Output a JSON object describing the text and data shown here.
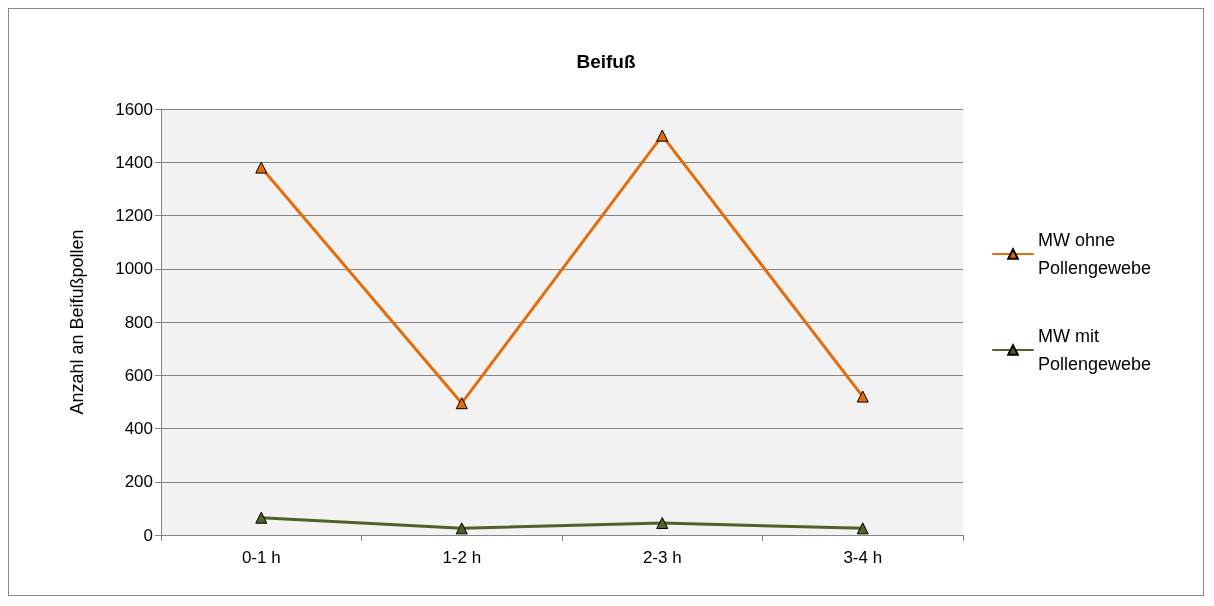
{
  "chart_data": {
    "type": "line",
    "title": "Beifuß",
    "ylabel": "Anzahl an Beifußpollen",
    "categories": [
      "0-1 h",
      "1-2 h",
      "2-3 h",
      "3-4 h"
    ],
    "series": [
      {
        "name": "MW ohne Pollengewebe",
        "color": "#e46c0a",
        "values": [
          1380,
          495,
          1500,
          520
        ]
      },
      {
        "name": "MW mit Pollengewebe",
        "color": "#4f6228",
        "values": [
          65,
          25,
          45,
          25
        ]
      }
    ],
    "ylim": [
      0,
      1600
    ],
    "yticks": [
      0,
      200,
      400,
      600,
      800,
      1000,
      1200,
      1400,
      1600
    ],
    "grid": "y",
    "legend": "right",
    "marker": "triangle",
    "line_style": "solid"
  }
}
